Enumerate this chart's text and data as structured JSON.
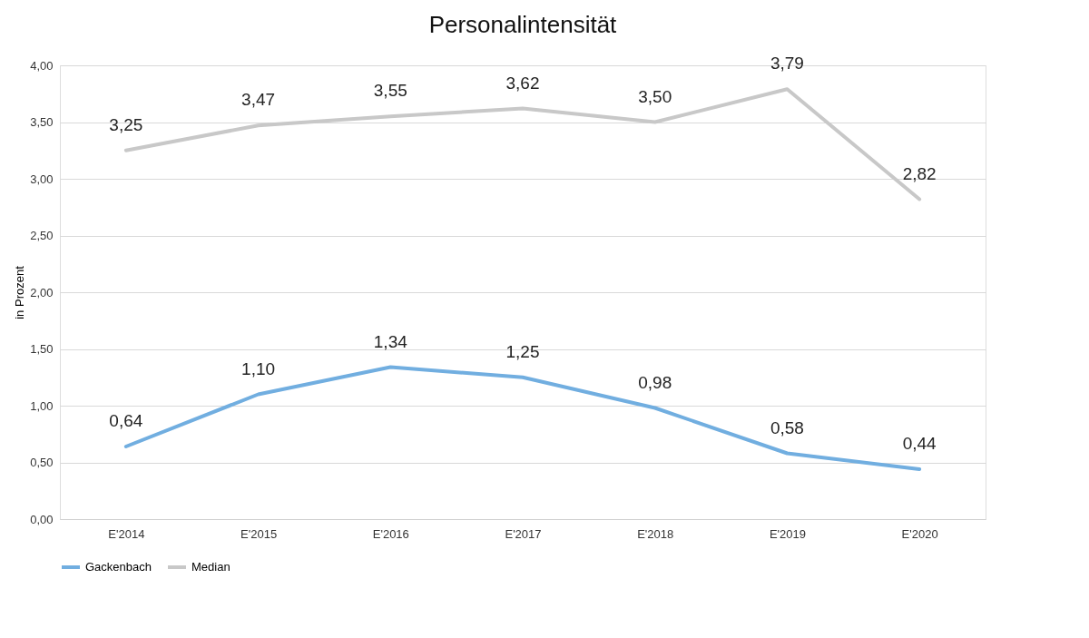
{
  "chart_data": {
    "type": "line",
    "title": "Personalintensität",
    "ylabel": "in Prozent",
    "categories": [
      "E'2014",
      "E'2015",
      "E'2016",
      "E'2017",
      "E'2018",
      "E'2019",
      "E'2020"
    ],
    "series": [
      {
        "name": "Gackenbach",
        "color": "#71aee0",
        "values": [
          0.64,
          1.1,
          1.34,
          1.25,
          0.98,
          0.58,
          0.44
        ],
        "value_labels": [
          "0,64",
          "1,10",
          "1,34",
          "1,25",
          "0,98",
          "0,58",
          "0,44"
        ]
      },
      {
        "name": "Median",
        "color": "#c8c8c8",
        "values": [
          3.25,
          3.47,
          3.55,
          3.62,
          3.5,
          3.79,
          2.82
        ],
        "value_labels": [
          "3,25",
          "3,47",
          "3,55",
          "3,62",
          "3,50",
          "3,79",
          "2,82"
        ]
      }
    ],
    "ylim": [
      0,
      4
    ],
    "yticks": [
      {
        "value": 0,
        "label": "0,00"
      },
      {
        "value": 0.5,
        "label": "0,50"
      },
      {
        "value": 1,
        "label": "1,00"
      },
      {
        "value": 1.5,
        "label": "1,50"
      },
      {
        "value": 2,
        "label": "2,00"
      },
      {
        "value": 2.5,
        "label": "2,50"
      },
      {
        "value": 3,
        "label": "3,00"
      },
      {
        "value": 3.5,
        "label": "3,50"
      },
      {
        "value": 4,
        "label": "4,00"
      }
    ],
    "grid": "y",
    "legend": "bottom",
    "marker": "none",
    "line_style": "solid"
  }
}
